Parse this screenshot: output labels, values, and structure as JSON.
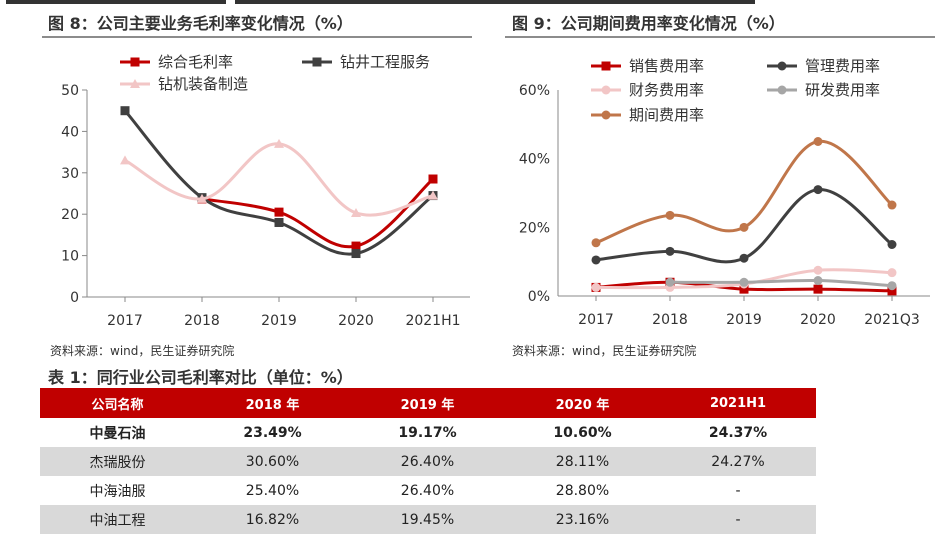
{
  "fig8": {
    "title": "图 8：公司主要业务毛利率变化情况（%）",
    "source": "资料来源：wind，民生证券研究院"
  },
  "fig9": {
    "title": "图 9：公司期间费用率变化情况（%）",
    "source": "资料来源：wind，民生证券研究院"
  },
  "table1": {
    "title": "表 1：同行业公司毛利率对比（单位：%）",
    "headers": [
      "公司名称",
      "2018 年",
      "2019 年",
      "2020 年",
      "2021H1"
    ],
    "rows": [
      [
        "中曼石油",
        "23.49%",
        "19.17%",
        "10.60%",
        "24.37%"
      ],
      [
        "杰瑞股份",
        "30.60%",
        "26.40%",
        "28.11%",
        "24.27%"
      ],
      [
        "中海油服",
        "25.40%",
        "26.40%",
        "28.80%",
        "-"
      ],
      [
        "中油工程",
        "16.82%",
        "19.45%",
        "23.16%",
        "-"
      ]
    ]
  },
  "chart_data": [
    {
      "type": "line",
      "title": "图 8：公司主要业务毛利率变化情况（%）",
      "categories": [
        "2017",
        "2018",
        "2019",
        "2020",
        "2021H1"
      ],
      "ylim": [
        0,
        50
      ],
      "yticks": [
        0,
        10,
        20,
        30,
        40,
        50
      ],
      "ytick_labels": [
        "0",
        "10",
        "20",
        "30",
        "40",
        "50"
      ],
      "series": [
        {
          "name": "综合毛利率",
          "color": "#c00000",
          "marker": "square",
          "values": [
            null,
            23.7,
            20.5,
            12.3,
            28.5
          ]
        },
        {
          "name": "钻井工程服务",
          "color": "#404040",
          "marker": "square",
          "values": [
            45.0,
            24.0,
            18.0,
            10.5,
            24.5
          ]
        },
        {
          "name": "钻机装备制造",
          "color": "#f2c6c6",
          "marker": "triangle",
          "values": [
            33.0,
            23.7,
            37.0,
            20.3,
            24.5
          ]
        }
      ]
    },
    {
      "type": "line",
      "title": "图 9：公司期间费用率变化情况（%）",
      "categories": [
        "2017",
        "2018",
        "2019",
        "2020",
        "2021Q3"
      ],
      "ylim": [
        0,
        60
      ],
      "yticks": [
        0,
        20,
        40,
        60
      ],
      "ytick_labels": [
        "0%",
        "20%",
        "40%",
        "60%"
      ],
      "series": [
        {
          "name": "销售费用率",
          "color": "#c00000",
          "marker": "square",
          "values": [
            2.5,
            4.0,
            2.0,
            2.0,
            1.5
          ]
        },
        {
          "name": "管理费用率",
          "color": "#404040",
          "marker": "circle",
          "values": [
            10.5,
            13.0,
            11.0,
            31.0,
            15.0
          ]
        },
        {
          "name": "财务费用率",
          "color": "#f2c6c6",
          "marker": "circle",
          "values": [
            2.5,
            2.5,
            3.5,
            7.5,
            6.8
          ]
        },
        {
          "name": "研发费用率",
          "color": "#a6a6a6",
          "marker": "circle",
          "values": [
            null,
            4.0,
            4.0,
            4.5,
            3.0
          ]
        },
        {
          "name": "期间费用率",
          "color": "#c0764a",
          "marker": "circle",
          "values": [
            15.5,
            23.5,
            20.0,
            45.0,
            26.5
          ]
        }
      ]
    }
  ]
}
